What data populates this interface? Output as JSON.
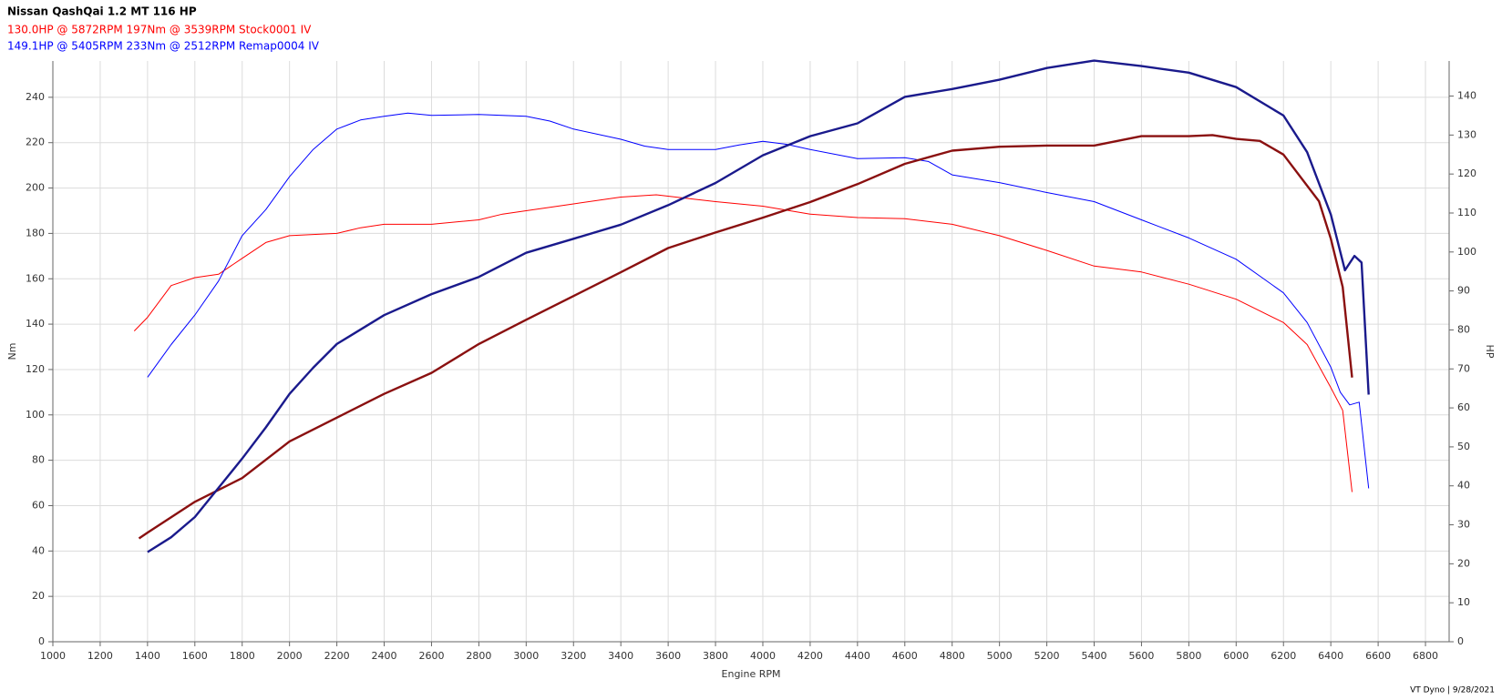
{
  "chart_data": {
    "type": "line",
    "title": "Nissan QashQai 1.2 MT 116 HP",
    "legend_lines": [
      {
        "text": "130.0HP @  5872RPM  197Nm @ 3539RPM  Stock0001 IV",
        "color": "#ff0000"
      },
      {
        "text": "149.1HP @  5405RPM  233Nm @ 2512RPM  Remap0004 IV",
        "color": "#0000ff"
      }
    ],
    "x_label": "Engine RPM",
    "y_label": "Nm",
    "y2_label": "HP",
    "footer": "VT Dyno | 9/28/2021",
    "grid": true,
    "xlim": [
      1000,
      6900
    ],
    "ylim": [
      0,
      256
    ],
    "y2lim": [
      0,
      149
    ],
    "xticks": [
      1000,
      1200,
      1400,
      1600,
      1800,
      2000,
      2200,
      2400,
      2600,
      2800,
      3000,
      3200,
      3400,
      3600,
      3800,
      4000,
      4200,
      4400,
      4600,
      4800,
      5000,
      5200,
      5400,
      5600,
      5800,
      6000,
      6200,
      6400,
      6600,
      6800
    ],
    "yticks": [
      0,
      20,
      40,
      60,
      80,
      100,
      120,
      140,
      160,
      180,
      200,
      220,
      240
    ],
    "y2ticks": [
      0,
      10,
      20,
      30,
      40,
      50,
      60,
      70,
      80,
      90,
      100,
      110,
      120,
      130,
      140
    ],
    "series": [
      {
        "color": "#ff0000",
        "width": 1,
        "axis": "y",
        "x": [
          1344,
          1400,
          1500,
          1600,
          1700,
          1800,
          1900,
          2000,
          2200,
          2300,
          2400,
          2600,
          2800,
          2900,
          3000,
          3200,
          3400,
          3550,
          3800,
          4000,
          4200,
          4400,
          4600,
          4800,
          5000,
          5200,
          5400,
          5600,
          5800,
          6000,
          6200,
          6300,
          6400,
          6450,
          6490
        ],
        "values": [
          137,
          143,
          157,
          160.5,
          162,
          169,
          176,
          179,
          180,
          182.5,
          184,
          184,
          186,
          188.5,
          190,
          193,
          196,
          197,
          194,
          192,
          188.5,
          187,
          186.5,
          184,
          179,
          172.5,
          165.6,
          163,
          157.6,
          151,
          140.7,
          131,
          112,
          102,
          66
        ]
      },
      {
        "color": "#0000ff",
        "width": 1,
        "axis": "y",
        "x": [
          1400,
          1500,
          1600,
          1700,
          1800,
          1900,
          2000,
          2100,
          2200,
          2300,
          2400,
          2500,
          2600,
          2800,
          3000,
          3100,
          3200,
          3400,
          3500,
          3600,
          3800,
          3900,
          4000,
          4100,
          4200,
          4400,
          4600,
          4700,
          4800,
          5000,
          5200,
          5400,
          5600,
          5800,
          6000,
          6200,
          6300,
          6400,
          6440,
          6480,
          6520,
          6560
        ],
        "values": [
          116.6,
          131,
          144,
          159,
          179,
          190.5,
          205,
          217,
          226,
          230,
          231.6,
          233,
          232,
          232.4,
          231.6,
          229.5,
          226,
          221.5,
          218.5,
          217,
          217,
          219,
          220.6,
          219.3,
          217,
          213,
          213.4,
          211.7,
          205.8,
          202.4,
          198,
          194,
          186,
          178,
          168.6,
          153.8,
          140.7,
          121,
          110,
          104.4,
          105.6,
          67.6
        ]
      },
      {
        "color": "#8a1010",
        "width": 2.4,
        "axis": "y2",
        "x": [
          1364,
          1400,
          1600,
          1800,
          2000,
          2200,
          2400,
          2600,
          2800,
          3000,
          3200,
          3400,
          3600,
          3800,
          4000,
          4200,
          4400,
          4600,
          4800,
          5000,
          5200,
          5400,
          5600,
          5800,
          5900,
          6000,
          6100,
          6200,
          6350,
          6400,
          6450,
          6490
        ],
        "values": [
          26.5,
          28,
          35.9,
          42,
          51.4,
          57.5,
          63.6,
          69,
          76.4,
          82.6,
          88.7,
          94.8,
          101,
          105,
          108.8,
          112.8,
          117.4,
          122.6,
          126,
          127,
          127.3,
          127.3,
          129.7,
          129.7,
          130,
          129,
          128.5,
          125,
          113,
          103.4,
          91,
          67.8
        ]
      },
      {
        "color": "#1a1a8c",
        "width": 2.4,
        "axis": "y2",
        "x": [
          1400,
          1500,
          1600,
          1700,
          1800,
          1900,
          2000,
          2100,
          2200,
          2400,
          2600,
          2800,
          3000,
          3200,
          3400,
          3600,
          3800,
          4000,
          4200,
          4400,
          4600,
          4800,
          5000,
          5200,
          5400,
          5600,
          5800,
          6000,
          6200,
          6300,
          6400,
          6460,
          6500,
          6530,
          6560
        ],
        "values": [
          23,
          26.8,
          32,
          39.5,
          47,
          55,
          63.6,
          70.3,
          76.4,
          83.8,
          89.2,
          93.6,
          99.8,
          103.4,
          107,
          112,
          117.7,
          124.8,
          129.7,
          133,
          139.8,
          141.8,
          144.2,
          147.2,
          149.1,
          147.7,
          146,
          142.3,
          135,
          125.6,
          109.6,
          95.3,
          99,
          97.3,
          63.4
        ]
      }
    ]
  }
}
